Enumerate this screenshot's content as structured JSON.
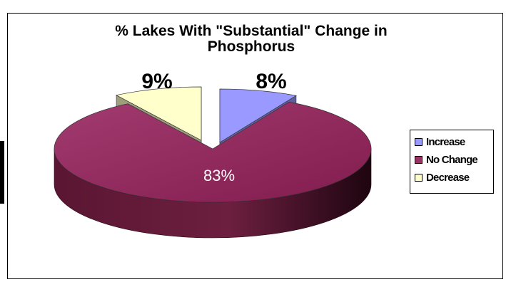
{
  "chart_data": {
    "type": "pie",
    "title": "% Lakes With \"Substantial\" Change in",
    "title_line2": "Phosphorus",
    "slices": [
      {
        "label": "Increase",
        "value": 8,
        "display": "8%",
        "color": "#9999ff"
      },
      {
        "label": "No Change",
        "value": 83,
        "display": "83%",
        "color": "#993366"
      },
      {
        "label": "Decrease",
        "value": 9,
        "display": "9%",
        "color": "#ffffcc"
      }
    ],
    "legend": {
      "position": "right",
      "items": [
        "Increase",
        "No Change",
        "Decrease"
      ]
    },
    "style": "3d-exploded"
  }
}
